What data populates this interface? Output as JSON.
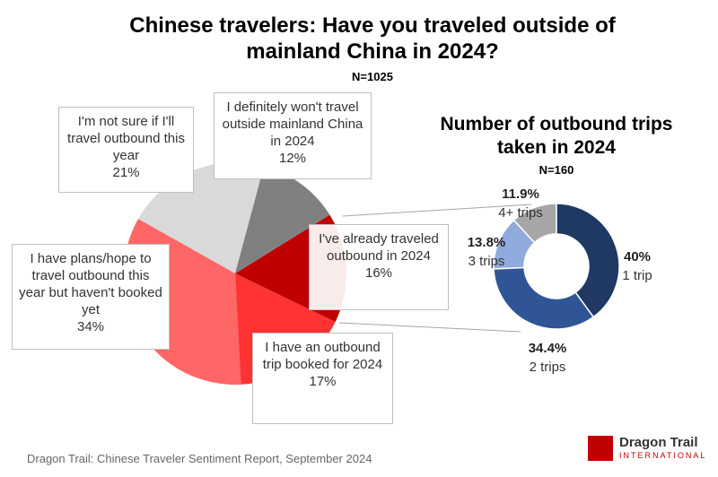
{
  "chart_data": [
    {
      "type": "pie",
      "title": "Chinese travelers: Have you traveled outside of mainland China in 2024?",
      "subtitle": "N=1025",
      "categories": [
        "I definitely won't travel outside mainland China in 2024",
        "I've already traveled outbound in 2024",
        "I have an outbound trip booked for 2024",
        "I have plans/hope to travel outbound this year but haven't booked yet",
        "I'm not sure if I'll travel outbound this year"
      ],
      "values": [
        12,
        16,
        17,
        34,
        21
      ],
      "value_labels": [
        "12%",
        "16%",
        "17%",
        "34%",
        "21%"
      ],
      "colors": [
        "#808080",
        "#c00000",
        "#ff3333",
        "#ff6666",
        "#d9d9d9"
      ]
    },
    {
      "type": "donut",
      "title": "Number of outbound trips taken in 2024",
      "subtitle": "N=160",
      "categories": [
        "1 trip",
        "2 trips",
        "3 trips",
        "4+ trips"
      ],
      "values": [
        40,
        34.4,
        13.8,
        11.9
      ],
      "value_labels": [
        "40%",
        "34.4%",
        "13.8%",
        "11.9%"
      ],
      "colors": [
        "#1f3864",
        "#2f5597",
        "#8faadc",
        "#a6a6a6"
      ]
    }
  ],
  "source": "Dragon Trail: Chinese Traveler Sentiment Report, September 2024",
  "logo": {
    "name": "Dragon Trail",
    "tagline": "INTERNATIONAL"
  }
}
